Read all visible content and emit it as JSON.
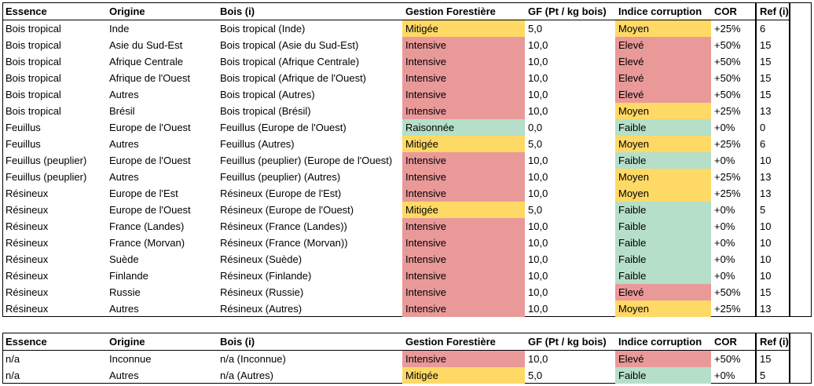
{
  "headers": {
    "essence": "Essence",
    "origine": "Origine",
    "bois": "Bois (i)",
    "gestion": "Gestion Forestière",
    "gf": "GF (Pt / kg bois)",
    "indice": "Indice corruption",
    "cor": "COR",
    "ref": "Ref (i)"
  },
  "rows": [
    {
      "essence": "Bois tropical",
      "origine": "Inde",
      "bois": "Bois tropical (Inde)",
      "gestion": "Mitigée",
      "gf": "5,0",
      "indice": "Moyen",
      "cor": "+25%",
      "ref": "6"
    },
    {
      "essence": "Bois tropical",
      "origine": "Asie du Sud-Est",
      "bois": "Bois tropical (Asie du Sud-Est)",
      "gestion": "Intensive",
      "gf": "10,0",
      "indice": "Elevé",
      "cor": "+50%",
      "ref": "15"
    },
    {
      "essence": "Bois tropical",
      "origine": "Afrique Centrale",
      "bois": "Bois tropical (Afrique Centrale)",
      "gestion": "Intensive",
      "gf": "10,0",
      "indice": "Elevé",
      "cor": "+50%",
      "ref": "15"
    },
    {
      "essence": "Bois tropical",
      "origine": "Afrique de l'Ouest",
      "bois": "Bois tropical (Afrique de l'Ouest)",
      "gestion": "Intensive",
      "gf": "10,0",
      "indice": "Elevé",
      "cor": "+50%",
      "ref": "15"
    },
    {
      "essence": "Bois tropical",
      "origine": "Autres",
      "bois": "Bois tropical (Autres)",
      "gestion": "Intensive",
      "gf": "10,0",
      "indice": "Elevé",
      "cor": "+50%",
      "ref": "15"
    },
    {
      "essence": "Bois tropical",
      "origine": "Brésil",
      "bois": "Bois tropical (Brésil)",
      "gestion": "Intensive",
      "gf": "10,0",
      "indice": "Moyen",
      "cor": "+25%",
      "ref": "13"
    },
    {
      "essence": "Feuillus",
      "origine": "Europe de l'Ouest",
      "bois": "Feuillus (Europe de l'Ouest)",
      "gestion": "Raisonnée",
      "gf": "0,0",
      "indice": "Faible",
      "cor": "+0%",
      "ref": "0"
    },
    {
      "essence": "Feuillus",
      "origine": "Autres",
      "bois": "Feuillus (Autres)",
      "gestion": "Mitigée",
      "gf": "5,0",
      "indice": "Moyen",
      "cor": "+25%",
      "ref": "6"
    },
    {
      "essence": "Feuillus (peuplier)",
      "origine": "Europe de l'Ouest",
      "bois": "Feuillus (peuplier) (Europe de l'Ouest)",
      "gestion": "Intensive",
      "gf": "10,0",
      "indice": "Faible",
      "cor": "+0%",
      "ref": "10"
    },
    {
      "essence": "Feuillus (peuplier)",
      "origine": "Autres",
      "bois": "Feuillus (peuplier) (Autres)",
      "gestion": "Intensive",
      "gf": "10,0",
      "indice": "Moyen",
      "cor": "+25%",
      "ref": "13"
    },
    {
      "essence": "Résineux",
      "origine": "Europe de l'Est",
      "bois": "Résineux (Europe de l'Est)",
      "gestion": "Intensive",
      "gf": "10,0",
      "indice": "Moyen",
      "cor": "+25%",
      "ref": "13"
    },
    {
      "essence": "Résineux",
      "origine": "Europe de l'Ouest",
      "bois": "Résineux (Europe de l'Ouest)",
      "gestion": "Mitigée",
      "gf": "5,0",
      "indice": "Faible",
      "cor": "+0%",
      "ref": "5"
    },
    {
      "essence": "Résineux",
      "origine": "France (Landes)",
      "bois": "Résineux (France (Landes))",
      "gestion": "Intensive",
      "gf": "10,0",
      "indice": "Faible",
      "cor": "+0%",
      "ref": "10"
    },
    {
      "essence": "Résineux",
      "origine": "France (Morvan)",
      "bois": "Résineux (France (Morvan))",
      "gestion": "Intensive",
      "gf": "10,0",
      "indice": "Faible",
      "cor": "+0%",
      "ref": "10"
    },
    {
      "essence": "Résineux",
      "origine": "Suède",
      "bois": "Résineux (Suède)",
      "gestion": "Intensive",
      "gf": "10,0",
      "indice": "Faible",
      "cor": "+0%",
      "ref": "10"
    },
    {
      "essence": "Résineux",
      "origine": "Finlande",
      "bois": "Résineux (Finlande)",
      "gestion": "Intensive",
      "gf": "10,0",
      "indice": "Faible",
      "cor": "+0%",
      "ref": "10"
    },
    {
      "essence": "Résineux",
      "origine": "Russie",
      "bois": "Résineux (Russie)",
      "gestion": "Intensive",
      "gf": "10,0",
      "indice": "Elevé",
      "cor": "+50%",
      "ref": "15"
    },
    {
      "essence": "Résineux",
      "origine": "Autres",
      "bois": "Résineux (Autres)",
      "gestion": "Intensive",
      "gf": "10,0",
      "indice": "Moyen",
      "cor": "+25%",
      "ref": "13"
    }
  ],
  "rows2": [
    {
      "essence": "n/a",
      "origine": "Inconnue",
      "bois": "n/a (Inconnue)",
      "gestion": "Intensive",
      "gf": "10,0",
      "indice": "Elevé",
      "cor": "+50%",
      "ref": "15"
    },
    {
      "essence": "n/a",
      "origine": "Autres",
      "bois": "n/a (Autres)",
      "gestion": "Mitigée",
      "gf": "5,0",
      "indice": "Faible",
      "cor": "+0%",
      "ref": "5"
    }
  ],
  "colors": {
    "mitigee": "#ffd966",
    "intensive": "#ea9999",
    "raisonnee": "#b6dfc9",
    "moyen": "#ffd966",
    "eleve": "#ea9999",
    "faible": "#b6dfc9"
  }
}
